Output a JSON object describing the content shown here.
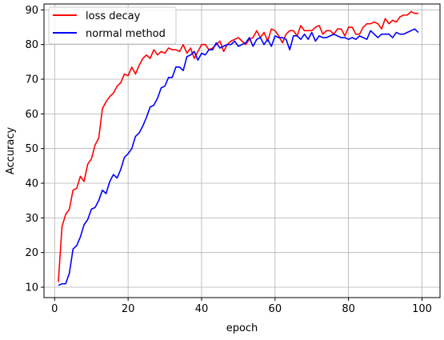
{
  "chart_data": {
    "type": "line",
    "title": "",
    "xlabel": "epoch",
    "ylabel": "Accuracy",
    "xlim": [
      -2.9,
      104.9
    ],
    "ylim": [
      7.0,
      91.7
    ],
    "grid": true,
    "legend_position": "top-left",
    "x_ticks": [
      "0",
      "20",
      "40",
      "60",
      "80",
      "100"
    ],
    "y_ticks": [
      "10",
      "20",
      "30",
      "40",
      "50",
      "60",
      "70",
      "80",
      "90"
    ],
    "x": [
      1,
      2,
      3,
      4,
      5,
      6,
      7,
      8,
      9,
      10,
      11,
      12,
      13,
      14,
      15,
      16,
      17,
      18,
      19,
      20,
      21,
      22,
      23,
      24,
      25,
      26,
      27,
      28,
      29,
      30,
      31,
      32,
      33,
      34,
      35,
      36,
      37,
      38,
      39,
      40,
      41,
      42,
      43,
      44,
      45,
      46,
      47,
      48,
      49,
      50,
      51,
      52,
      53,
      54,
      55,
      56,
      57,
      58,
      59,
      60,
      61,
      62,
      63,
      64,
      65,
      66,
      67,
      68,
      69,
      70,
      71,
      72,
      73,
      74,
      75,
      76,
      77,
      78,
      79,
      80,
      81,
      82,
      83,
      84,
      85,
      86,
      87,
      88,
      89,
      90,
      91,
      92,
      93,
      94,
      95,
      96,
      97,
      98,
      99
    ],
    "series": [
      {
        "name": "loss decay",
        "color": "#ff0000",
        "values": [
          11.5,
          27.5,
          31.0,
          32.5,
          38.0,
          38.5,
          42.0,
          40.5,
          45.5,
          47.0,
          51.0,
          53.0,
          61.5,
          63.5,
          65.0,
          66.0,
          68.0,
          69.0,
          71.5,
          71.0,
          73.5,
          71.5,
          74.0,
          76.0,
          77.0,
          76.0,
          78.5,
          77.0,
          78.0,
          77.5,
          79.0,
          78.5,
          78.5,
          78.0,
          80.0,
          77.5,
          79.0,
          76.0,
          78.0,
          80.0,
          80.0,
          78.5,
          79.0,
          80.0,
          81.0,
          78.0,
          80.0,
          81.0,
          81.5,
          82.0,
          81.0,
          80.0,
          81.5,
          82.0,
          84.0,
          82.0,
          83.5,
          81.0,
          84.5,
          84.0,
          82.5,
          80.5,
          83.0,
          84.0,
          84.0,
          82.5,
          85.5,
          84.0,
          84.0,
          84.0,
          85.0,
          85.5,
          83.0,
          84.0,
          84.0,
          83.0,
          84.5,
          84.5,
          82.5,
          85.0,
          85.0,
          83.0,
          83.0,
          85.0,
          86.0,
          86.0,
          86.5,
          86.0,
          84.5,
          87.5,
          86.0,
          87.0,
          86.5,
          88.0,
          88.5,
          88.5,
          89.5,
          89.0,
          89.0
        ]
      },
      {
        "name": "normal method",
        "color": "#0000ff",
        "values": [
          10.5,
          11.0,
          11.0,
          14.0,
          21.0,
          22.0,
          24.5,
          28.0,
          29.5,
          32.5,
          33.0,
          35.0,
          38.0,
          37.0,
          40.5,
          42.5,
          41.5,
          44.0,
          47.5,
          48.5,
          50.0,
          53.5,
          54.5,
          56.5,
          59.0,
          62.0,
          62.5,
          64.5,
          67.5,
          68.0,
          70.5,
          70.5,
          73.5,
          73.5,
          72.5,
          76.5,
          77.0,
          78.0,
          75.5,
          77.5,
          77.0,
          78.5,
          78.5,
          80.5,
          79.0,
          79.5,
          80.0,
          80.0,
          81.0,
          79.5,
          80.0,
          80.5,
          82.0,
          79.5,
          81.5,
          82.0,
          80.0,
          81.5,
          79.5,
          82.5,
          82.0,
          82.0,
          81.5,
          78.5,
          82.5,
          82.5,
          81.5,
          83.0,
          81.5,
          83.5,
          81.0,
          82.5,
          82.0,
          82.0,
          82.5,
          83.0,
          82.5,
          82.0,
          82.0,
          81.5,
          82.0,
          81.5,
          82.5,
          82.0,
          81.5,
          84.0,
          83.0,
          82.0,
          83.0,
          83.0,
          83.0,
          82.0,
          83.5,
          83.0,
          83.0,
          83.5,
          84.0,
          84.5,
          83.5
        ]
      }
    ]
  }
}
